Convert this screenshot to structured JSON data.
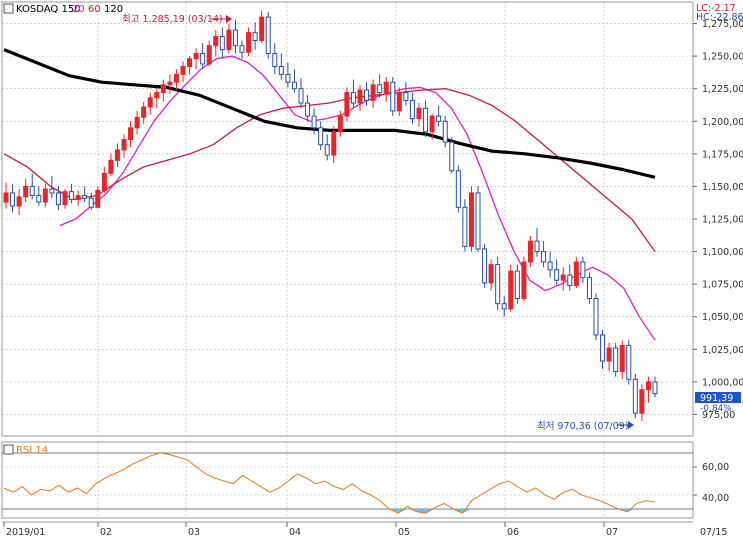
{
  "header": {
    "symbol": "KOSDAQ 150",
    "ma_periods": [
      "20",
      "60",
      "120"
    ],
    "corner_text": [
      "LC:-2.17",
      "HC:-22.86"
    ]
  },
  "price_axis_labels": [
    "1,275,00",
    "1,250,00",
    "1,225,00",
    "1,200,00",
    "1,175,00",
    "1,150,00",
    "1,125,00",
    "1,100,00",
    "1,075,00",
    "1,050,00",
    "1,025,00",
    "1,000,00",
    "975,00"
  ],
  "price_marker": {
    "value": "991,39",
    "change": "-0.84%"
  },
  "annotations": {
    "high": "최고 1,285,19 (03/14)",
    "low": "최저 970,36 (07/09)"
  },
  "date_labels": [
    "2019/01",
    "02",
    "03",
    "04",
    "05",
    "06",
    "07",
    "07/15"
  ],
  "rsi": {
    "title": "RSI 14",
    "axis_labels": [
      "60,00",
      "40,00"
    ]
  },
  "colors": {
    "up": "#e8262a",
    "down": "#2a4fa8",
    "ma20": "#e020c8",
    "ma60": "#d01838",
    "ma120": "#000000",
    "rsi": "#e87a20",
    "rsi_fill": "#6ec0e8"
  },
  "chart_data": [
    {
      "type": "candlestick",
      "title": "KOSDAQ 150",
      "x": "date",
      "ylim": [
        960,
        1290
      ],
      "series": [
        {
          "name": "KOSDAQ 150",
          "ohlc": [
            [
              1138,
              1153,
              1133,
              1145
            ],
            [
              1145,
              1152,
              1130,
              1135
            ],
            [
              1135,
              1148,
              1128,
              1142
            ],
            [
              1142,
              1156,
              1138,
              1150
            ],
            [
              1150,
              1160,
              1140,
              1143
            ],
            [
              1143,
              1150,
              1135,
              1138
            ],
            [
              1138,
              1152,
              1134,
              1148
            ],
            [
              1148,
              1158,
              1141,
              1145
            ],
            [
              1145,
              1150,
              1132,
              1136
            ],
            [
              1136,
              1148,
              1133,
              1146
            ],
            [
              1146,
              1152,
              1137,
              1140
            ],
            [
              1140,
              1147,
              1135,
              1143
            ],
            [
              1143,
              1150,
              1138,
              1141
            ],
            [
              1141,
              1145,
              1132,
              1134
            ],
            [
              1134,
              1150,
              1133,
              1147
            ],
            [
              1147,
              1165,
              1145,
              1160
            ],
            [
              1160,
              1175,
              1158,
              1170
            ],
            [
              1170,
              1183,
              1165,
              1178
            ],
            [
              1178,
              1190,
              1172,
              1186
            ],
            [
              1186,
              1200,
              1180,
              1195
            ],
            [
              1195,
              1208,
              1190,
              1203
            ],
            [
              1203,
              1215,
              1198,
              1211
            ],
            [
              1211,
              1222,
              1205,
              1218
            ],
            [
              1218,
              1226,
              1210,
              1222
            ],
            [
              1222,
              1232,
              1215,
              1228
            ],
            [
              1228,
              1236,
              1221,
              1230
            ],
            [
              1230,
              1240,
              1224,
              1236
            ],
            [
              1236,
              1246,
              1230,
              1242
            ],
            [
              1242,
              1250,
              1236,
              1248
            ],
            [
              1248,
              1256,
              1240,
              1252
            ],
            [
              1252,
              1260,
              1240,
              1244
            ],
            [
              1244,
              1262,
              1242,
              1258
            ],
            [
              1258,
              1270,
              1250,
              1265
            ],
            [
              1265,
              1272,
              1248,
              1255
            ],
            [
              1255,
              1275,
              1252,
              1270
            ],
            [
              1270,
              1278,
              1252,
              1258
            ],
            [
              1258,
              1262,
              1248,
              1253
            ],
            [
              1253,
              1272,
              1250,
              1268
            ],
            [
              1268,
              1276,
              1255,
              1262
            ],
            [
              1262,
              1285,
              1260,
              1280
            ],
            [
              1280,
              1284,
              1248,
              1252
            ],
            [
              1252,
              1260,
              1236,
              1242
            ],
            [
              1242,
              1252,
              1232,
              1236
            ],
            [
              1236,
              1245,
              1226,
              1230
            ],
            [
              1230,
              1240,
              1222,
              1225
            ],
            [
              1225,
              1233,
              1210,
              1214
            ],
            [
              1214,
              1220,
              1200,
              1204
            ],
            [
              1204,
              1210,
              1190,
              1195
            ],
            [
              1195,
              1200,
              1178,
              1182
            ],
            [
              1182,
              1190,
              1170,
              1174
            ],
            [
              1174,
              1196,
              1168,
              1192
            ],
            [
              1192,
              1208,
              1188,
              1204
            ],
            [
              1204,
              1226,
              1200,
              1222
            ],
            [
              1222,
              1232,
              1210,
              1214
            ],
            [
              1214,
              1228,
              1208,
              1224
            ],
            [
              1224,
              1230,
              1212,
              1216
            ],
            [
              1216,
              1232,
              1210,
              1228
            ],
            [
              1228,
              1236,
              1218,
              1222
            ],
            [
              1222,
              1234,
              1215,
              1230
            ],
            [
              1230,
              1234,
              1204,
              1208
            ],
            [
              1208,
              1226,
              1204,
              1222
            ],
            [
              1222,
              1230,
              1212,
              1216
            ],
            [
              1216,
              1222,
              1198,
              1202
            ],
            [
              1202,
              1214,
              1196,
              1210
            ],
            [
              1210,
              1216,
              1188,
              1192
            ],
            [
              1192,
              1206,
              1186,
              1204
            ],
            [
              1204,
              1212,
              1196,
              1200
            ],
            [
              1200,
              1204,
              1180,
              1184
            ],
            [
              1184,
              1188,
              1160,
              1162
            ],
            [
              1162,
              1166,
              1130,
              1134
            ],
            [
              1134,
              1140,
              1100,
              1104
            ],
            [
              1104,
              1150,
              1100,
              1145
            ],
            [
              1145,
              1150,
              1100,
              1102
            ],
            [
              1102,
              1106,
              1072,
              1076
            ],
            [
              1076,
              1094,
              1070,
              1090
            ],
            [
              1090,
              1096,
              1055,
              1060
            ],
            [
              1060,
              1066,
              1050,
              1056
            ],
            [
              1056,
              1090,
              1054,
              1085
            ],
            [
              1085,
              1090,
              1060,
              1064
            ],
            [
              1064,
              1096,
              1062,
              1092
            ],
            [
              1092,
              1112,
              1088,
              1108
            ],
            [
              1108,
              1118,
              1096,
              1100
            ],
            [
              1100,
              1108,
              1088,
              1092
            ],
            [
              1092,
              1100,
              1080,
              1086
            ],
            [
              1086,
              1094,
              1074,
              1078
            ],
            [
              1078,
              1088,
              1070,
              1082
            ],
            [
              1082,
              1090,
              1070,
              1074
            ],
            [
              1074,
              1096,
              1072,
              1092
            ],
            [
              1092,
              1096,
              1076,
              1080
            ],
            [
              1080,
              1084,
              1060,
              1064
            ],
            [
              1064,
              1068,
              1032,
              1036
            ],
            [
              1036,
              1040,
              1010,
              1016
            ],
            [
              1016,
              1030,
              1008,
              1026
            ],
            [
              1026,
              1030,
              1004,
              1008
            ],
            [
              1008,
              1032,
              1002,
              1028
            ],
            [
              1028,
              1032,
              998,
              1002
            ],
            [
              1002,
              1006,
              972,
              976
            ],
            [
              976,
              998,
              970,
              994
            ],
            [
              994,
              1004,
              984,
              1000
            ],
            [
              1000,
              1004,
              988,
              991
            ]
          ]
        },
        {
          "name": "20",
          "values": [
            1120,
            1125,
            1135,
            1145,
            1160,
            1180,
            1200,
            1215,
            1228,
            1240,
            1248,
            1250,
            1245,
            1235,
            1220,
            1205,
            1200,
            1202,
            1205,
            1212,
            1218,
            1222,
            1225,
            1226,
            1222,
            1210,
            1190,
            1160,
            1128,
            1100,
            1078,
            1070,
            1075,
            1082,
            1088,
            1082,
            1072,
            1050,
            1032
          ]
        },
        {
          "name": "60",
          "values": [
            1175,
            1165,
            1150,
            1140,
            1143,
            1155,
            1165,
            1170,
            1175,
            1182,
            1195,
            1205,
            1210,
            1212,
            1214,
            1218,
            1220,
            1222,
            1224,
            1225,
            1220,
            1212,
            1200,
            1185,
            1170,
            1155,
            1140,
            1125,
            1100
          ]
        },
        {
          "name": "120",
          "values": [
            1255,
            1245,
            1235,
            1230,
            1228,
            1226,
            1220,
            1210,
            1200,
            1195,
            1193,
            1193,
            1193,
            1190,
            1183,
            1177,
            1175,
            1172,
            1168,
            1163,
            1157
          ]
        }
      ]
    },
    {
      "type": "line",
      "title": "RSI 14",
      "ylim": [
        25,
        75
      ],
      "series": [
        {
          "name": "RSI 14",
          "values": [
            45,
            42,
            46,
            40,
            44,
            43,
            47,
            42,
            45,
            41,
            48,
            52,
            55,
            58,
            62,
            65,
            68,
            70,
            69,
            67,
            65,
            60,
            55,
            52,
            50,
            48,
            54,
            50,
            46,
            42,
            45,
            50,
            55,
            52,
            48,
            50,
            46,
            44,
            48,
            43,
            40,
            36,
            30,
            27,
            32,
            28,
            27,
            31,
            34,
            30,
            27,
            36,
            40,
            44,
            48,
            50,
            46,
            42,
            45,
            40,
            37,
            42,
            44,
            40,
            38,
            36,
            33,
            30,
            28,
            34,
            36,
            35
          ]
        }
      ]
    }
  ]
}
